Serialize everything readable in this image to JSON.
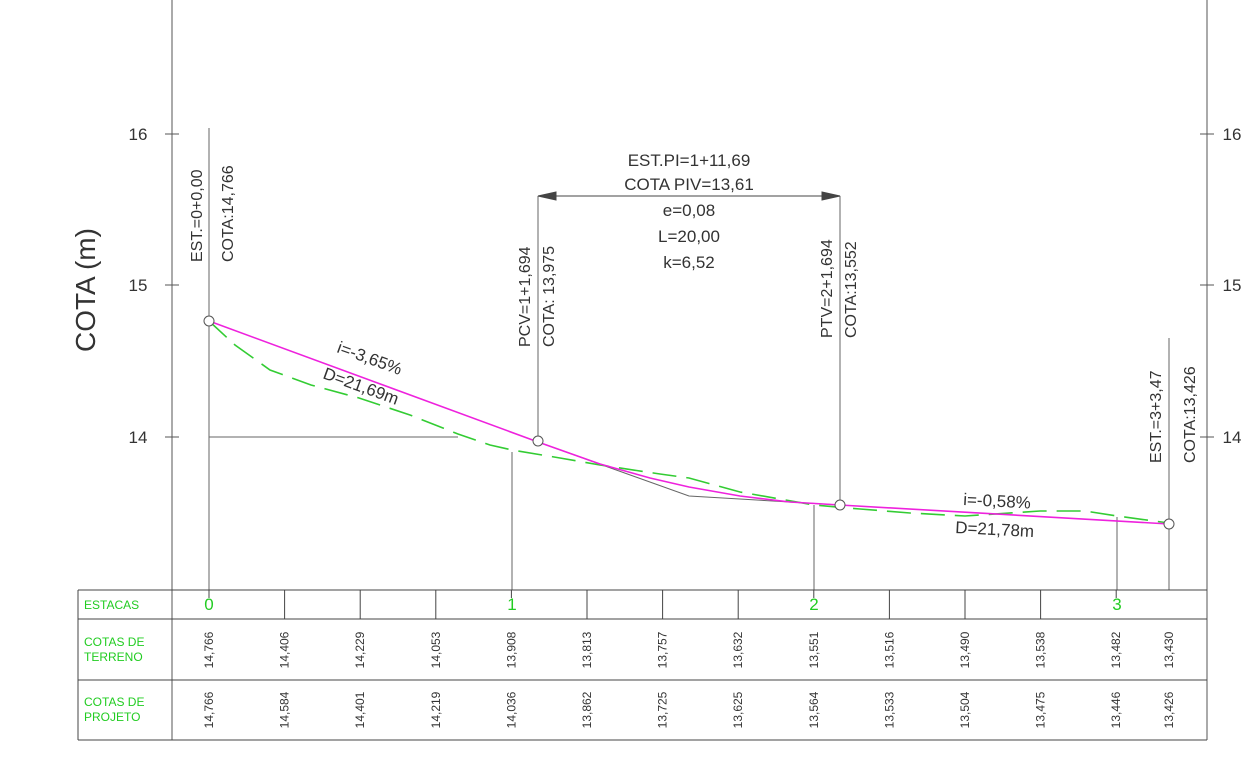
{
  "axis": {
    "ylabel": "COTA (m)",
    "left_ticks": [
      "16",
      "15",
      "14"
    ],
    "right_ticks": [
      "16",
      "15",
      "14"
    ]
  },
  "colors": {
    "projeto": "#ee22dd",
    "terreno": "#33cc33",
    "lines": "#666666",
    "table_headers": "#22cc22"
  },
  "points": {
    "start": {
      "est": "EST.=0+0,00",
      "cota": "COTA:14,766"
    },
    "pcv": {
      "est": "PCV=1+1,694",
      "cota": "COTA: 13,975"
    },
    "ptv": {
      "est": "PTV=2+1,694",
      "cota": "COTA:13,552"
    },
    "end": {
      "est": "EST.=3+3,47",
      "cota": "COTA:13,426"
    }
  },
  "curve": {
    "lines": [
      "EST.PI=1+11,69",
      "COTA PIV=13,61",
      "e=0,08",
      "L=20,00",
      "k=6,52"
    ]
  },
  "grades": {
    "g1": {
      "i": "i=-3,65%",
      "d": "D=21,69m"
    },
    "g2": {
      "i": "i=-0,58%",
      "d": "D=21,78m"
    }
  },
  "table": {
    "headers": {
      "estacas": "ESTACAS",
      "terreno": [
        "COTAS DE",
        "TERRENO"
      ],
      "projeto": [
        "COTAS DE",
        "PROJETO"
      ]
    },
    "estacas": [
      "0",
      "1",
      "2",
      "3"
    ],
    "cotas_terreno": [
      "14,766",
      "14,406",
      "14,229",
      "14,053",
      "13,908",
      "13,813",
      "13,757",
      "13,632",
      "13,551",
      "13,516",
      "13,490",
      "13,538",
      "13,482",
      "13,430"
    ],
    "cotas_projeto": [
      "14,766",
      "14,584",
      "14,401",
      "14,219",
      "14,036",
      "13,862",
      "13,725",
      "13,625",
      "13,564",
      "13,533",
      "13,504",
      "13,475",
      "13,446",
      "13,426"
    ]
  }
}
